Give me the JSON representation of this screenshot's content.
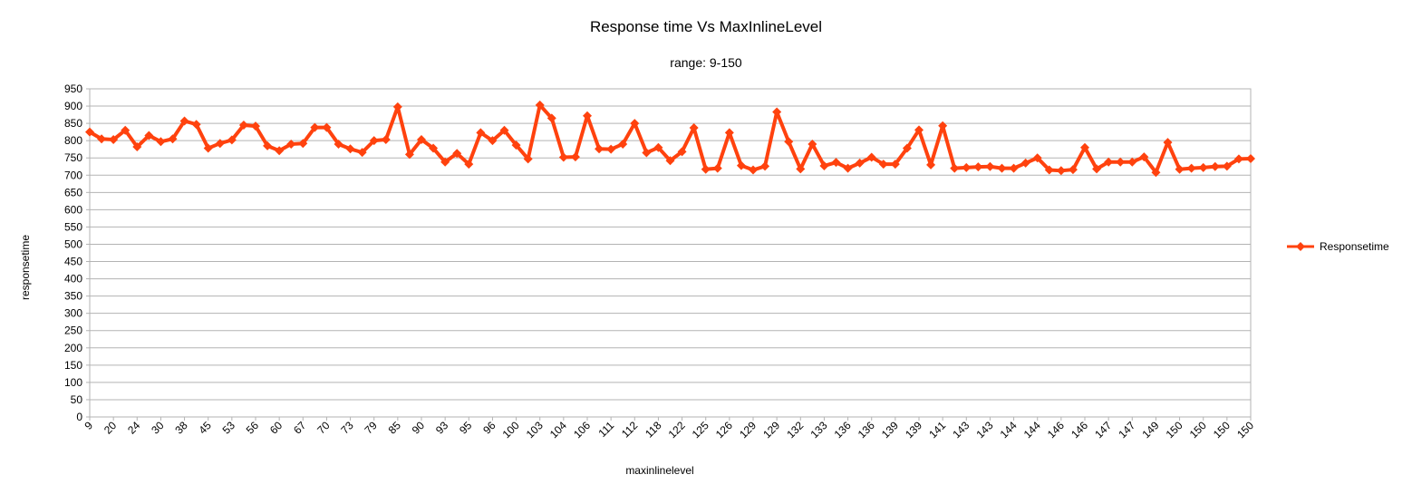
{
  "chart_data": {
    "type": "line",
    "title": "Response time Vs MaxInlineLevel",
    "subtitle": "range: 9-150",
    "xlabel": "maxinlinelevel",
    "ylabel": "responsetime",
    "ylim": [
      0,
      950
    ],
    "y_ticks": [
      0,
      50,
      100,
      150,
      200,
      250,
      300,
      350,
      400,
      450,
      500,
      550,
      600,
      650,
      700,
      750,
      800,
      850,
      900,
      950
    ],
    "grid": true,
    "legend_position": "right",
    "x_tick_labels": [
      "9",
      "20",
      "24",
      "30",
      "38",
      "45",
      "53",
      "56",
      "60",
      "67",
      "70",
      "73",
      "79",
      "85",
      "90",
      "93",
      "95",
      "96",
      "100",
      "103",
      "104",
      "106",
      "111",
      "112",
      "118",
      "122",
      "125",
      "126",
      "129",
      "129",
      "132",
      "133",
      "136",
      "136",
      "139",
      "139",
      "141",
      "143",
      "143",
      "144",
      "144",
      "146",
      "146",
      "147",
      "147",
      "149",
      "150",
      "150",
      "150",
      "150"
    ],
    "series": [
      {
        "name": "Responsetime",
        "color": "#ff420e",
        "values": [
          825,
          805,
          803,
          830,
          782,
          815,
          797,
          805,
          857,
          847,
          778,
          792,
          802,
          845,
          842,
          785,
          771,
          790,
          792,
          838,
          838,
          790,
          776,
          766,
          800,
          803,
          898,
          760,
          803,
          778,
          738,
          763,
          732,
          823,
          800,
          830,
          787,
          747,
          903,
          865,
          752,
          753,
          872,
          776,
          775,
          790,
          850,
          765,
          780,
          742,
          768,
          837,
          717,
          720,
          823,
          728,
          715,
          726,
          883,
          797,
          718,
          790,
          727,
          737,
          720,
          735,
          752,
          732,
          732,
          778,
          831,
          730,
          843,
          720,
          722,
          724,
          725,
          720,
          720,
          735,
          750,
          715,
          713,
          716,
          780,
          718,
          738,
          738,
          738,
          753,
          708,
          795,
          717,
          720,
          722,
          725,
          726,
          747,
          748
        ]
      }
    ]
  }
}
